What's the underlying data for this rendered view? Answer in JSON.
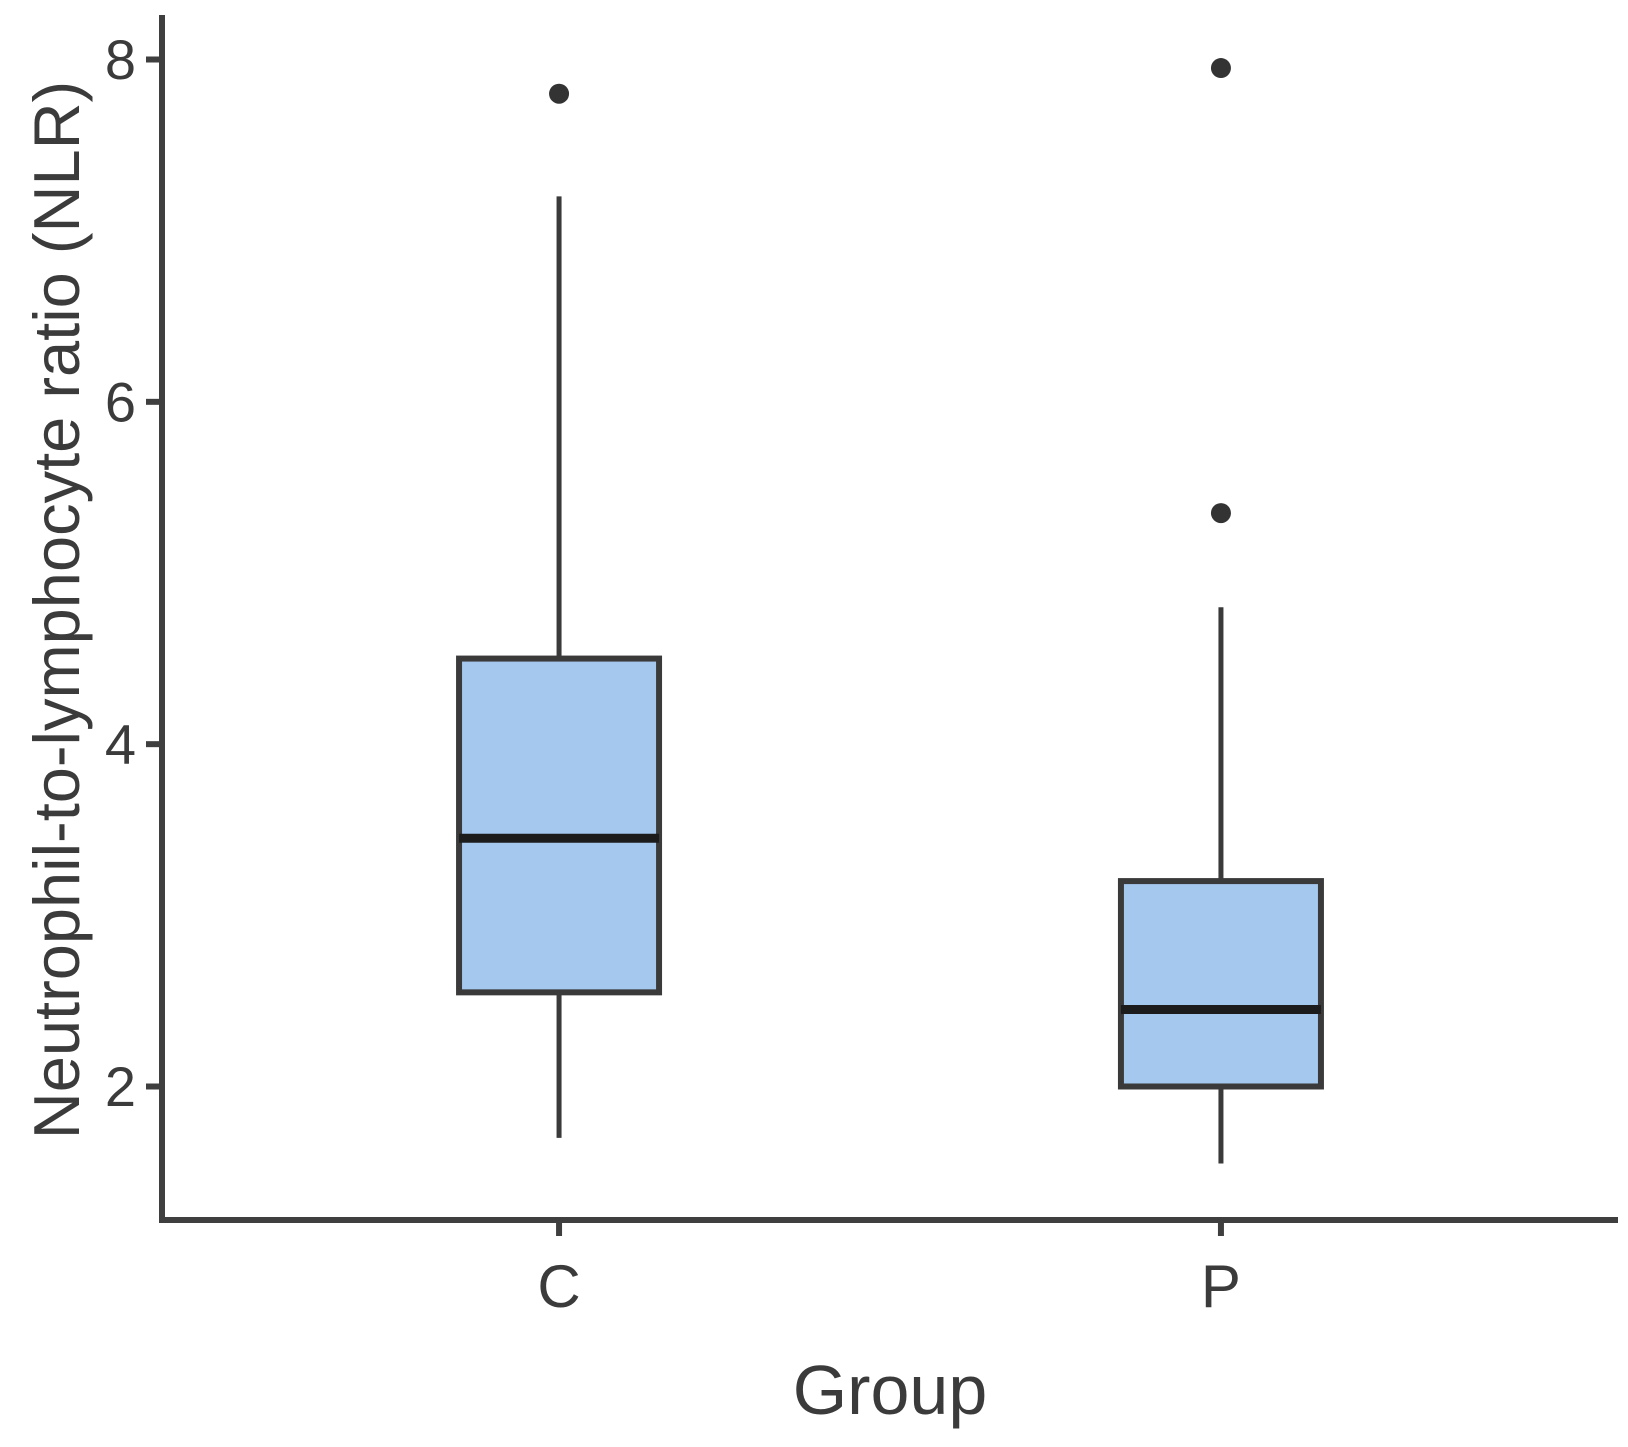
{
  "figure": {
    "background": "#ffffff"
  },
  "chart_data": {
    "type": "boxplot",
    "title": "",
    "xlabel": "Group",
    "ylabel": "Neutrophil-to-lymphocyte ratio (NLR)",
    "categories": [
      "C",
      "P"
    ],
    "y_ticks": [
      2,
      4,
      6,
      8
    ],
    "ylim": [
      1.22,
      8.26
    ],
    "grid": false,
    "legend": false,
    "series": [
      {
        "name": "C",
        "whisker_low": 1.7,
        "q1": 2.55,
        "median": 3.45,
        "q3": 4.5,
        "whisker_high": 7.2,
        "outliers": [
          7.8
        ]
      },
      {
        "name": "P",
        "whisker_low": 1.55,
        "q1": 2.0,
        "median": 2.45,
        "q3": 3.2,
        "whisker_high": 4.8,
        "outliers": [
          5.35,
          7.95
        ]
      }
    ],
    "colors": {
      "box_fill": "#a5c8ef",
      "box_border": "#3a3a3a",
      "median": "#1c1c1c",
      "whisker": "#3a3a3a",
      "axis": "#3f3f3f",
      "text": "#3b3b3b",
      "outlier": "#333333"
    }
  }
}
